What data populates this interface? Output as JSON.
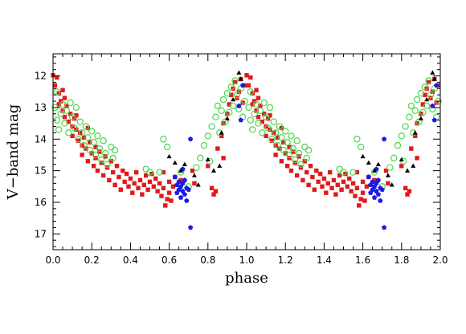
{
  "chart_data": {
    "type": "scatter",
    "xlabel": "phase",
    "ylabel": "V−band mag",
    "xlim": [
      0.0,
      2.0
    ],
    "ylim": [
      17.5,
      11.3
    ],
    "y_inverted": true,
    "grid": false,
    "legend": "none",
    "x_ticks": [
      "0.0",
      "0.2",
      "0.4",
      "0.6",
      "0.8",
      "1.0",
      "1.2",
      "1.4",
      "1.6",
      "1.8",
      "2.0"
    ],
    "y_ticks": [
      "12",
      "13",
      "14",
      "15",
      "16",
      "17"
    ],
    "period_shift": 1.0,
    "colors": {
      "red_squares": "#e0191b",
      "green_circles": "#4bd64b",
      "blue_pentagons": "#1a1ae6",
      "black_triangles": "#000000",
      "axis": "#000000"
    },
    "series": [
      {
        "marker": "square",
        "color": "red_squares",
        "points": [
          [
            0.0,
            11.98
          ],
          [
            0.01,
            12.3
          ],
          [
            0.02,
            12.05
          ],
          [
            0.03,
            12.55
          ],
          [
            0.03,
            12.9
          ],
          [
            0.04,
            12.8
          ],
          [
            0.05,
            13.1
          ],
          [
            0.06,
            12.7
          ],
          [
            0.06,
            13.3
          ],
          [
            0.07,
            12.95
          ],
          [
            0.08,
            13.45
          ],
          [
            0.09,
            13.2
          ],
          [
            0.1,
            13.6
          ],
          [
            0.1,
            13.9
          ],
          [
            0.11,
            13.35
          ],
          [
            0.12,
            13.7
          ],
          [
            0.13,
            14.05
          ],
          [
            0.14,
            13.8
          ],
          [
            0.15,
            14.2
          ],
          [
            0.15,
            14.5
          ],
          [
            0.16,
            13.95
          ],
          [
            0.17,
            14.3
          ],
          [
            0.18,
            14.7
          ],
          [
            0.19,
            14.1
          ],
          [
            0.2,
            14.45
          ],
          [
            0.21,
            14.85
          ],
          [
            0.22,
            14.25
          ],
          [
            0.22,
            14.6
          ],
          [
            0.23,
            15.0
          ],
          [
            0.24,
            14.4
          ],
          [
            0.25,
            14.75
          ],
          [
            0.26,
            15.15
          ],
          [
            0.27,
            14.55
          ],
          [
            0.28,
            14.9
          ],
          [
            0.29,
            15.3
          ],
          [
            0.3,
            14.7
          ],
          [
            0.31,
            15.05
          ],
          [
            0.32,
            15.45
          ],
          [
            0.33,
            14.85
          ],
          [
            0.34,
            15.2
          ],
          [
            0.35,
            15.6
          ],
          [
            0.36,
            15.0
          ],
          [
            0.37,
            15.35
          ],
          [
            0.38,
            15.1
          ],
          [
            0.39,
            15.5
          ],
          [
            0.4,
            15.25
          ],
          [
            0.41,
            15.7
          ],
          [
            0.42,
            15.4
          ],
          [
            0.43,
            15.05
          ],
          [
            0.44,
            15.55
          ],
          [
            0.45,
            15.3
          ],
          [
            0.46,
            15.75
          ],
          [
            0.47,
            15.45
          ],
          [
            0.48,
            15.15
          ],
          [
            0.49,
            15.6
          ],
          [
            0.5,
            15.35
          ],
          [
            0.51,
            15.1
          ],
          [
            0.52,
            15.5
          ],
          [
            0.53,
            15.25
          ],
          [
            0.54,
            15.65
          ],
          [
            0.55,
            15.4
          ],
          [
            0.56,
            15.8
          ],
          [
            0.57,
            15.55
          ],
          [
            0.58,
            16.1
          ],
          [
            0.59,
            15.9
          ],
          [
            0.6,
            15.7
          ],
          [
            0.61,
            15.95
          ],
          [
            0.62,
            15.5
          ],
          [
            0.63,
            15.2
          ],
          [
            0.66,
            15.3
          ],
          [
            0.72,
            15.0
          ],
          [
            0.73,
            15.4
          ],
          [
            0.8,
            14.85
          ],
          [
            0.82,
            15.55
          ],
          [
            0.83,
            15.75
          ],
          [
            0.84,
            15.65
          ],
          [
            0.85,
            14.3
          ],
          [
            0.87,
            13.9
          ],
          [
            0.88,
            13.5
          ],
          [
            0.9,
            13.2
          ],
          [
            0.91,
            12.9
          ],
          [
            0.92,
            12.6
          ],
          [
            0.93,
            12.4
          ],
          [
            0.94,
            12.2
          ],
          [
            0.95,
            12.7
          ],
          [
            0.96,
            12.5
          ],
          [
            0.97,
            12.1
          ],
          [
            0.98,
            12.85
          ],
          [
            0.99,
            12.3
          ],
          [
            0.88,
            14.6
          ],
          [
            0.6,
            15.35
          ],
          [
            0.57,
            15.05
          ],
          [
            0.05,
            12.45
          ],
          [
            0.12,
            13.25
          ],
          [
            0.18,
            13.65
          ]
        ]
      },
      {
        "marker": "circle",
        "color": "green_circles",
        "points": [
          [
            0.01,
            13.0
          ],
          [
            0.02,
            12.5
          ],
          [
            0.02,
            13.4
          ],
          [
            0.03,
            13.7
          ],
          [
            0.04,
            13.2
          ],
          [
            0.05,
            12.9
          ],
          [
            0.06,
            13.5
          ],
          [
            0.07,
            13.1
          ],
          [
            0.08,
            13.8
          ],
          [
            0.09,
            12.85
          ],
          [
            0.1,
            13.3
          ],
          [
            0.11,
            13.65
          ],
          [
            0.12,
            13.0
          ],
          [
            0.13,
            14.0
          ],
          [
            0.14,
            13.45
          ],
          [
            0.15,
            13.8
          ],
          [
            0.16,
            14.2
          ],
          [
            0.17,
            13.6
          ],
          [
            0.18,
            13.95
          ],
          [
            0.19,
            14.35
          ],
          [
            0.2,
            13.75
          ],
          [
            0.21,
            14.1
          ],
          [
            0.22,
            14.5
          ],
          [
            0.23,
            13.9
          ],
          [
            0.24,
            14.3
          ],
          [
            0.25,
            14.65
          ],
          [
            0.26,
            14.05
          ],
          [
            0.27,
            14.45
          ],
          [
            0.28,
            14.8
          ],
          [
            0.3,
            14.25
          ],
          [
            0.31,
            14.6
          ],
          [
            0.32,
            14.35
          ],
          [
            0.48,
            14.95
          ],
          [
            0.5,
            15.05
          ],
          [
            0.55,
            15.05
          ],
          [
            0.57,
            14.0
          ],
          [
            0.59,
            14.25
          ],
          [
            0.66,
            15.05
          ],
          [
            0.7,
            15.5
          ],
          [
            0.74,
            14.9
          ],
          [
            0.76,
            14.6
          ],
          [
            0.78,
            14.2
          ],
          [
            0.8,
            13.9
          ],
          [
            0.81,
            14.7
          ],
          [
            0.82,
            13.6
          ],
          [
            0.84,
            13.3
          ],
          [
            0.85,
            12.95
          ],
          [
            0.86,
            13.8
          ],
          [
            0.87,
            13.1
          ],
          [
            0.88,
            12.75
          ],
          [
            0.89,
            13.45
          ],
          [
            0.9,
            12.55
          ],
          [
            0.91,
            13.15
          ],
          [
            0.92,
            12.35
          ],
          [
            0.93,
            12.95
          ],
          [
            0.94,
            12.15
          ],
          [
            0.95,
            12.6
          ],
          [
            0.96,
            13.05
          ],
          [
            0.97,
            12.4
          ],
          [
            0.98,
            13.3
          ],
          [
            0.99,
            12.8
          ]
        ]
      },
      {
        "marker": "pentagon",
        "color": "blue_pentagons",
        "points": [
          [
            0.63,
            15.2
          ],
          [
            0.64,
            15.45
          ],
          [
            0.64,
            15.7
          ],
          [
            0.65,
            15.35
          ],
          [
            0.65,
            15.6
          ],
          [
            0.66,
            15.5
          ],
          [
            0.66,
            15.85
          ],
          [
            0.67,
            15.4
          ],
          [
            0.67,
            15.65
          ],
          [
            0.68,
            15.3
          ],
          [
            0.68,
            15.75
          ],
          [
            0.69,
            15.55
          ],
          [
            0.69,
            15.95
          ],
          [
            0.7,
            15.6
          ],
          [
            0.71,
            14.0
          ],
          [
            0.71,
            16.8
          ],
          [
            0.67,
            14.95
          ],
          [
            0.96,
            12.95
          ],
          [
            0.97,
            13.4
          ],
          [
            0.98,
            12.3
          ]
        ]
      },
      {
        "marker": "triangle",
        "color": "black_triangles",
        "points": [
          [
            0.6,
            14.55
          ],
          [
            0.63,
            14.75
          ],
          [
            0.66,
            15.0
          ],
          [
            0.68,
            14.8
          ],
          [
            0.73,
            15.15
          ],
          [
            0.75,
            15.45
          ],
          [
            0.8,
            14.65
          ],
          [
            0.83,
            15.0
          ],
          [
            0.86,
            14.85
          ],
          [
            0.87,
            13.8
          ],
          [
            0.9,
            13.35
          ],
          [
            0.93,
            12.75
          ],
          [
            0.96,
            11.9
          ],
          [
            0.97,
            12.1
          ]
        ]
      }
    ]
  }
}
